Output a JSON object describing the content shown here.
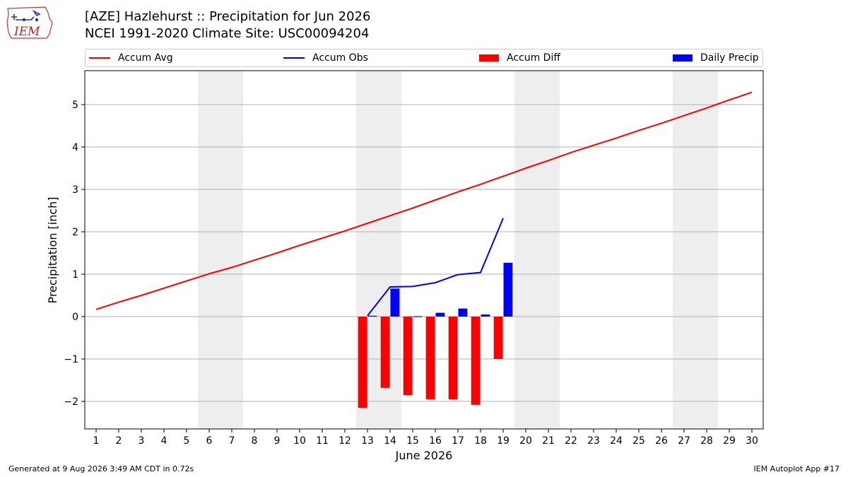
{
  "header": {
    "title": "[AZE] Hazlehurst :: Precipitation for Jun 2026",
    "subtitle": "NCEI 1991-2020 Climate Site: USC00094204",
    "logo_text": "IEM"
  },
  "legend": {
    "items": [
      {
        "label": "Accum Avg",
        "color": "#ff0000",
        "kind": "line"
      },
      {
        "label": "Accum Obs",
        "color": "#0000ff",
        "kind": "line"
      },
      {
        "label": "Accum Diff",
        "color": "#ff0000",
        "kind": "box"
      },
      {
        "label": "Daily Precip",
        "color": "#0000ff",
        "kind": "box"
      }
    ]
  },
  "footer": {
    "generated": "Generated at 9 Aug 2026 3:49 AM CDT in 0.72s",
    "app": "IEM Autoplot App #17"
  },
  "chart_data": {
    "type": "bar",
    "title": "[AZE] Hazlehurst :: Precipitation for Jun 2026",
    "xlabel": "June 2026",
    "ylabel": "Precipitation [inch]",
    "x": [
      1,
      2,
      3,
      4,
      5,
      6,
      7,
      8,
      9,
      10,
      11,
      12,
      13,
      14,
      15,
      16,
      17,
      18,
      19,
      20,
      21,
      22,
      23,
      24,
      25,
      26,
      27,
      28,
      29,
      30
    ],
    "xlim": [
      0.5,
      30.5
    ],
    "ylim": [
      -2.65,
      5.8
    ],
    "yticks": [
      -2,
      -1,
      0,
      1,
      2,
      3,
      4,
      5
    ],
    "ytick_labels": [
      "−2",
      "−1",
      "0",
      "1",
      "2",
      "3",
      "4",
      "5"
    ],
    "grid": "horizontal",
    "weekend_days": [
      6,
      7,
      13,
      14,
      20,
      21,
      27,
      28
    ],
    "weekend_color": "#eeeeee",
    "series": [
      {
        "name": "Accum Avg",
        "kind": "line",
        "color": "#ff0000",
        "x": [
          1,
          2,
          3,
          4,
          5,
          6,
          7,
          8,
          9,
          10,
          11,
          12,
          13,
          14,
          15,
          16,
          17,
          18,
          19,
          20,
          21,
          22,
          23,
          24,
          25,
          26,
          27,
          28,
          29,
          30
        ],
        "values": [
          0.17,
          0.34,
          0.5,
          0.67,
          0.84,
          1.01,
          1.16,
          1.33,
          1.5,
          1.68,
          1.85,
          2.02,
          2.2,
          2.38,
          2.56,
          2.75,
          2.94,
          3.12,
          3.31,
          3.5,
          3.68,
          3.87,
          4.04,
          4.21,
          4.39,
          4.56,
          4.74,
          4.92,
          5.11,
          5.29
        ]
      },
      {
        "name": "Accum Obs",
        "kind": "line",
        "color": "#0000ff",
        "x": [
          13,
          14,
          15,
          16,
          17,
          18,
          19
        ],
        "values": [
          0.02,
          0.7,
          0.71,
          0.8,
          0.99,
          1.04,
          2.32
        ]
      },
      {
        "name": "Accum Diff",
        "kind": "bar",
        "color": "#ff0000",
        "x": [
          13,
          14,
          15,
          16,
          17,
          18,
          19
        ],
        "values": [
          -2.15,
          -1.68,
          -1.85,
          -1.95,
          -1.95,
          -2.08,
          -1.0
        ]
      },
      {
        "name": "Daily Precip",
        "kind": "bar",
        "color": "#0000ff",
        "x": [
          13,
          14,
          15,
          16,
          17,
          18,
          19
        ],
        "values": [
          0.02,
          0.66,
          0.01,
          0.09,
          0.19,
          0.05,
          1.27
        ]
      }
    ]
  }
}
